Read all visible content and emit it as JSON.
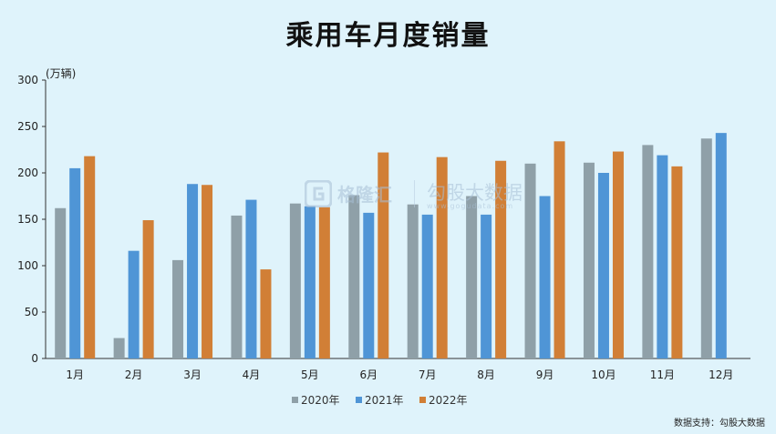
{
  "chart_data": {
    "type": "bar",
    "title": "乘用车月度销量",
    "unit_label": "(万辆)",
    "categories": [
      "1月",
      "2月",
      "3月",
      "4月",
      "5月",
      "6月",
      "7月",
      "8月",
      "9月",
      "10月",
      "11月",
      "12月"
    ],
    "series": [
      {
        "name": "2020年",
        "color": "#8fa0a8",
        "values": [
          162,
          22,
          106,
          154,
          167,
          176,
          166,
          175,
          210,
          211,
          230,
          237
        ]
      },
      {
        "name": "2021年",
        "color": "#4f95d6",
        "values": [
          205,
          116,
          188,
          171,
          164,
          157,
          155,
          155,
          175,
          200,
          219,
          243
        ]
      },
      {
        "name": "2022年",
        "color": "#d17f36",
        "values": [
          218,
          149,
          187,
          96,
          163,
          222,
          217,
          213,
          234,
          223,
          207,
          null
        ]
      }
    ],
    "ylim": [
      0,
      300
    ],
    "yticks": [
      0,
      50,
      100,
      150,
      200,
      250,
      300
    ],
    "grid": false,
    "legend": "bottom"
  },
  "watermark": {
    "brand1": "格隆汇",
    "brand2": "勾股大数据",
    "url": "www.gogudata.com"
  },
  "source_note": "数据支持：勾股大数据"
}
